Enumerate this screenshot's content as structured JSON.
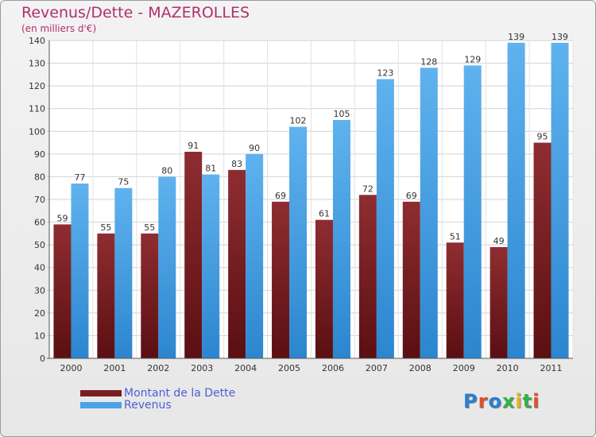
{
  "chart_data": {
    "type": "bar",
    "title": "Revenus/Dette - MAZEROLLES",
    "subtitle": "(en milliers d'€)",
    "categories": [
      "2000",
      "2001",
      "2002",
      "2003",
      "2004",
      "2005",
      "2006",
      "2007",
      "2008",
      "2009",
      "2010",
      "2011"
    ],
    "series": [
      {
        "name": "Montant de la Dette",
        "values": [
          59,
          55,
          55,
          91,
          83,
          69,
          61,
          72,
          69,
          51,
          49,
          95
        ],
        "color": "#7a1e22"
      },
      {
        "name": "Revenus",
        "values": [
          77,
          75,
          80,
          81,
          90,
          102,
          105,
          123,
          128,
          129,
          139,
          139
        ],
        "color": "#4aa3e6"
      }
    ],
    "ylim": [
      0,
      140
    ],
    "yticks": [
      0,
      10,
      20,
      30,
      40,
      50,
      60,
      70,
      80,
      90,
      100,
      110,
      120,
      130,
      140
    ],
    "grid": true,
    "legend_position": "bottom-left"
  },
  "logo": {
    "text": "Proxiti",
    "letter_colors": [
      "#2a7fd4",
      "#e0502a",
      "#2a7fd4",
      "#2fb34a",
      "#e8b020",
      "#2fb34a",
      "#e0502a"
    ]
  }
}
